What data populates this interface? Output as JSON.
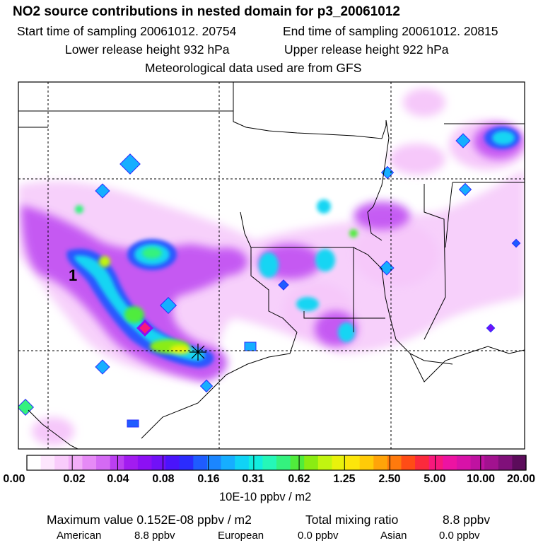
{
  "header": {
    "title": "NO2 source contributions in nested domain for p3_20061012",
    "start_label": "Start time of sampling 20061012. 20754",
    "end_label": "End time of sampling 20061012. 20815",
    "lower_label": "Lower release height  932 hPa",
    "upper_label": "Upper release height  922 hPa",
    "met_label": "Meteorological data used are from GFS"
  },
  "map": {
    "marker_label": "1",
    "release_marker": "star-cross"
  },
  "colorbar": {
    "ticks": [
      "0.00",
      "0.02",
      "0.04",
      "0.08",
      "0.16",
      "0.31",
      "0.62",
      "1.25",
      "2.50",
      "5.00",
      "10.00",
      "20.00"
    ],
    "unit_label": "10E-10 ppbv / m2",
    "colors": [
      "#ffffff",
      "#fde6fd",
      "#f9ccfb",
      "#f2aef8",
      "#e68af6",
      "#d46af4",
      "#bb3ff1",
      "#a21cf0",
      "#8c10f4",
      "#7111f7",
      "#4a14fb",
      "#2b2cfd",
      "#1f5cff",
      "#1b86ff",
      "#16aeff",
      "#10d3f5",
      "#12eddf",
      "#25f7b8",
      "#34f27e",
      "#50ec3c",
      "#8aec12",
      "#c1f510",
      "#e9f20c",
      "#fce60b",
      "#ffcb08",
      "#ffa409",
      "#ff7a0d",
      "#ff4c16",
      "#fb2a3c",
      "#f8187c",
      "#ed13a2",
      "#d812a8",
      "#bf12a1",
      "#a2128f",
      "#80107a",
      "#5c0c5b"
    ]
  },
  "footer": {
    "max_label": "Maximum value  0.152E-08 ppbv / m2",
    "total_label": "Total mixing ratio",
    "total_value": "8.8 ppbv",
    "american_label": "American",
    "american_value": "8.8 ppbv",
    "european_label": "European",
    "european_value": "0.0 ppbv",
    "asian_label": "Asian",
    "asian_value": "0.0 ppbv"
  }
}
